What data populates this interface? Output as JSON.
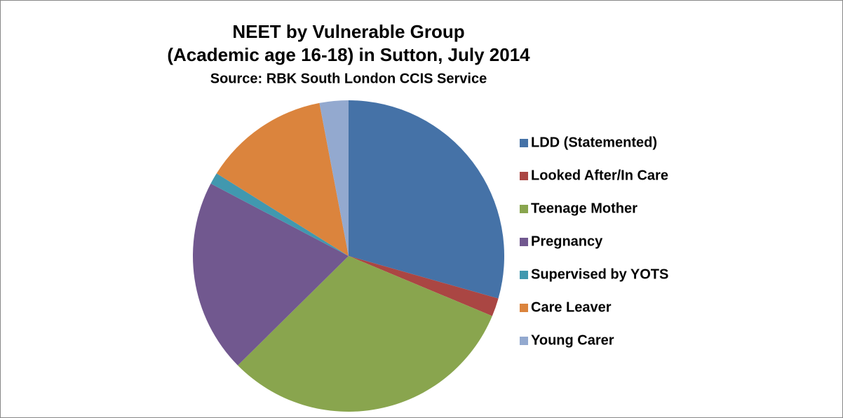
{
  "chart_data": {
    "type": "pie",
    "title": [
      "NEET by Vulnerable Group",
      "(Academic age 16-18) in Sutton, July 2014"
    ],
    "subtitle": "Source: RBK South London CCIS Service",
    "categories": [
      "LDD (Statemented)",
      "Looked After/In Care",
      "Teenage Mother",
      "Pregnancy",
      "Supervised by YOTS",
      "Care Leaver",
      "Young Carer"
    ],
    "values": [
      29.4,
      1.9,
      31.3,
      20.1,
      1.2,
      13.1,
      3.0
    ],
    "colors": [
      "#4572A7",
      "#AA4643",
      "#89A54E",
      "#71588F",
      "#4198AF",
      "#DB843D",
      "#93A9CF"
    ],
    "legend": "right"
  }
}
